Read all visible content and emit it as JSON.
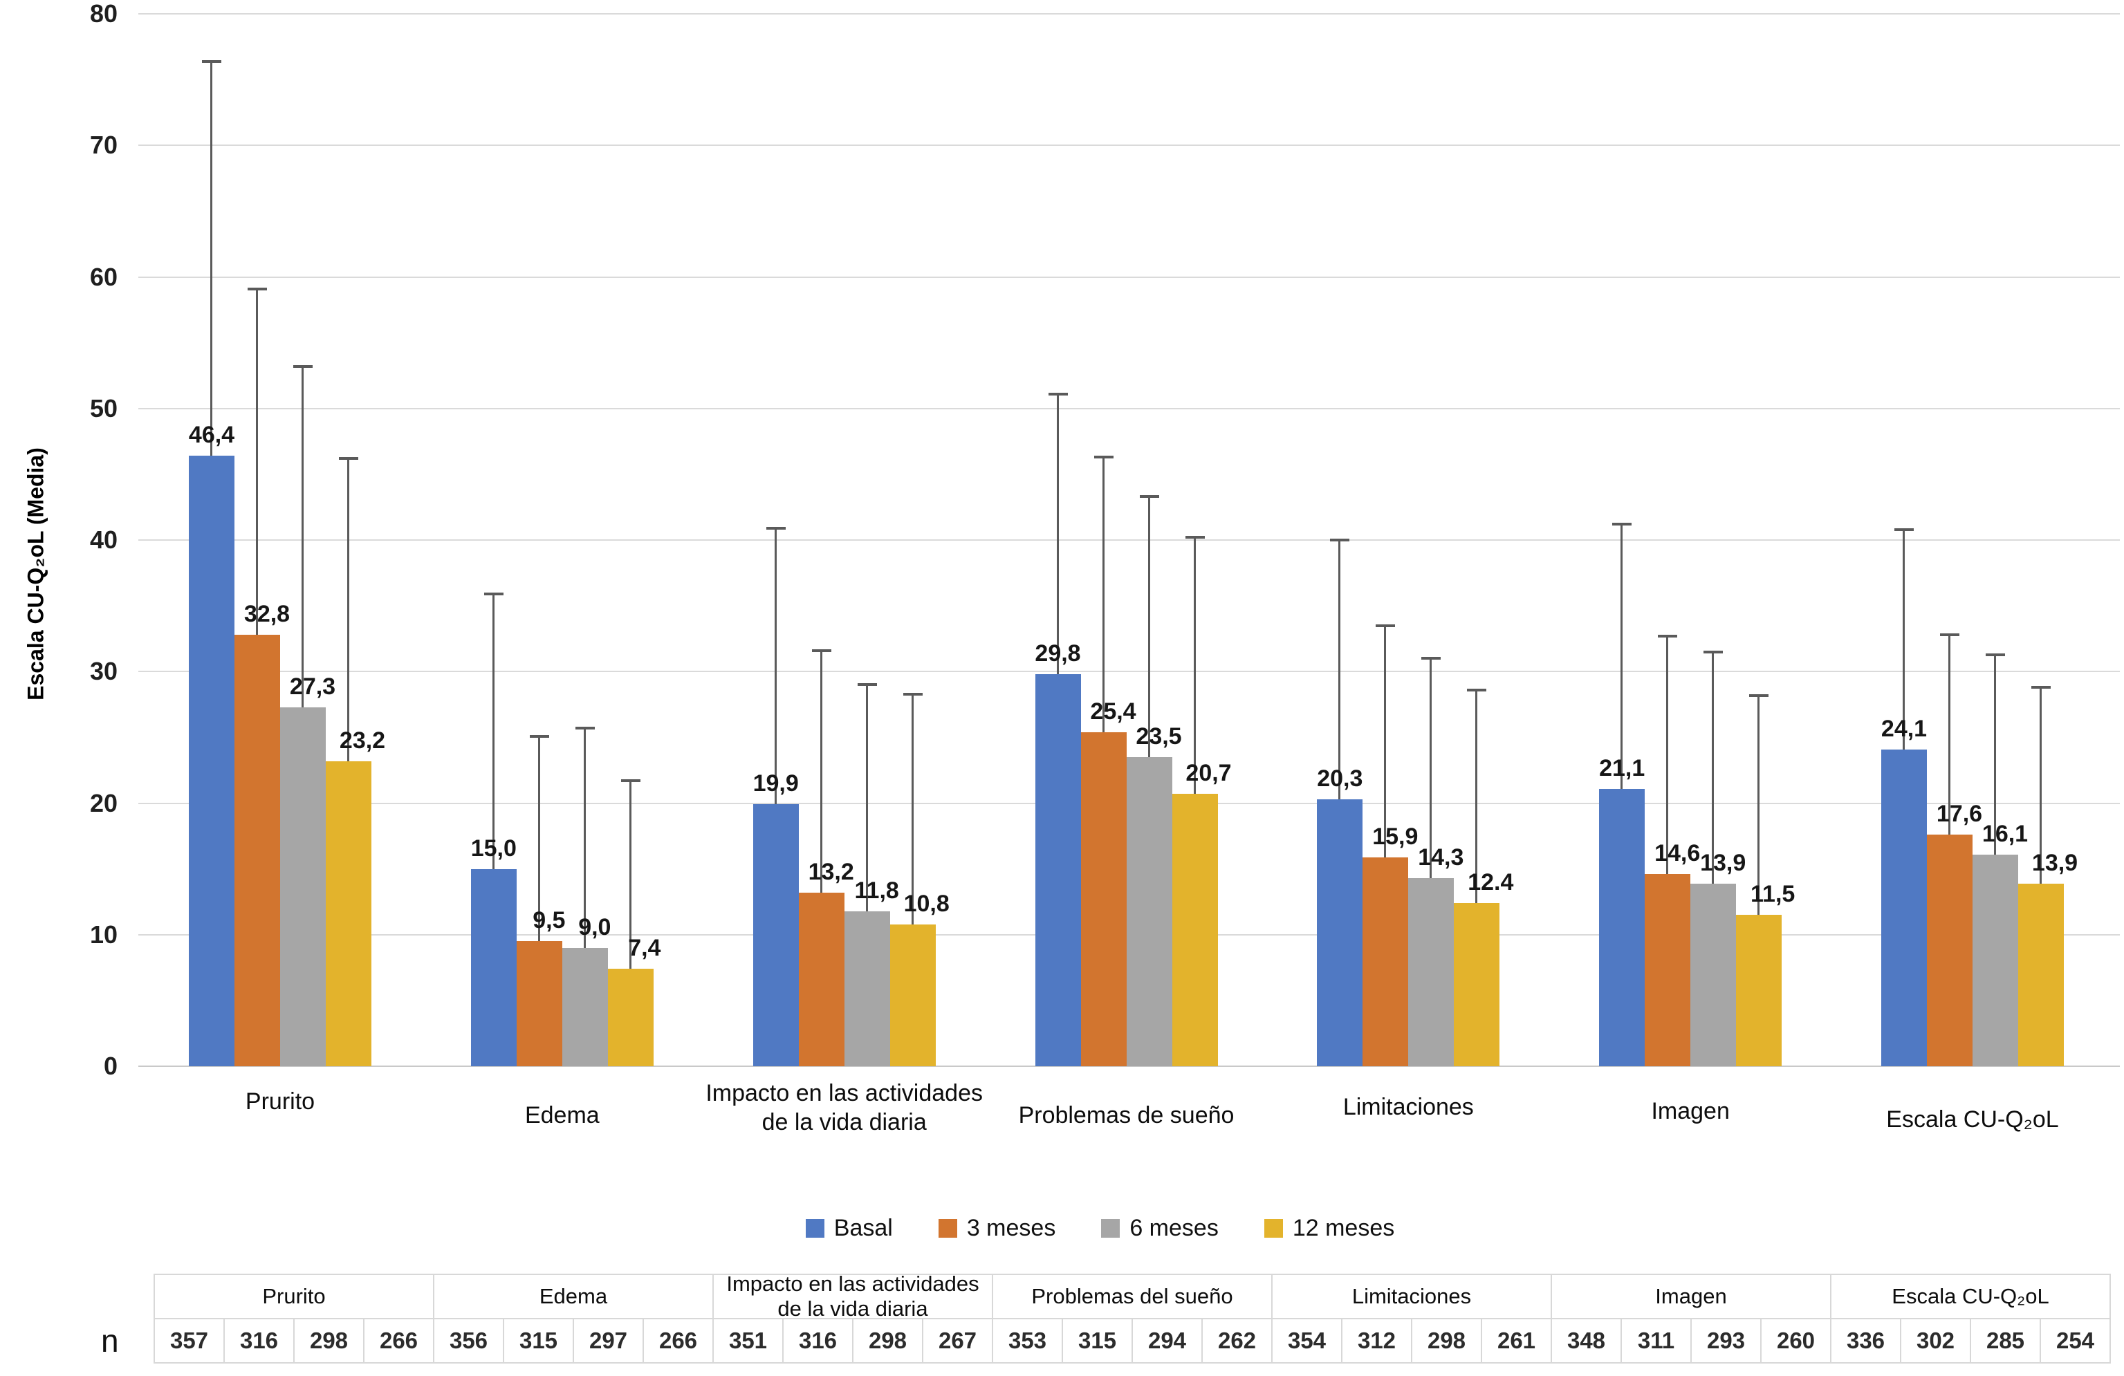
{
  "chart_data": {
    "type": "bar",
    "title": "",
    "ylabel": "Escala CU-Q₂oL (Media)",
    "xlabel": "",
    "ylim": [
      0,
      80
    ],
    "yticks": [
      0,
      10,
      20,
      30,
      40,
      50,
      60,
      70,
      80
    ],
    "grid": "horizontal",
    "legend_position": "bottom",
    "error_bars": "upper-only",
    "categories": [
      "Prurito",
      "Edema",
      "Impacto en las actividades\nde la vida diaria",
      "Problemas de sueño",
      "Limitaciones",
      "Imagen",
      "Escala CU-Q₂oL"
    ],
    "series": [
      {
        "name": "Basal",
        "color": "#5079C3",
        "values": [
          46.4,
          15.0,
          19.9,
          29.8,
          20.3,
          21.1,
          24.1
        ],
        "value_labels": [
          "46,4",
          "15,0",
          "19,9",
          "29,8",
          "20,3",
          "21,1",
          "24,1"
        ],
        "err_top": [
          76.5,
          36.0,
          41.0,
          51.2,
          40.1,
          41.3,
          40.9
        ]
      },
      {
        "name": "3 meses",
        "color": "#D2752F",
        "values": [
          32.8,
          9.5,
          13.2,
          25.4,
          15.9,
          14.6,
          17.6
        ],
        "value_labels": [
          "32,8",
          "9,5",
          "13,2",
          "25,4",
          "15,9",
          "14,6",
          "17,6"
        ],
        "err_top": [
          59.2,
          25.2,
          31.7,
          46.4,
          33.6,
          32.8,
          32.9
        ]
      },
      {
        "name": "6 meses",
        "color": "#A6A6A6",
        "values": [
          27.3,
          9.0,
          11.8,
          23.5,
          14.3,
          13.9,
          16.1
        ],
        "value_labels": [
          "27,3",
          "9,0",
          "11,8",
          "23,5",
          "14,3",
          "13,9",
          "16,1"
        ],
        "err_top": [
          53.3,
          25.8,
          29.1,
          43.4,
          31.1,
          31.6,
          31.4
        ]
      },
      {
        "name": "12 meses",
        "color": "#E3B32C",
        "values": [
          23.2,
          7.4,
          10.8,
          20.7,
          12.4,
          11.5,
          13.9
        ],
        "value_labels": [
          "23,2",
          "7,4",
          "10,8",
          "20,7",
          "12.4",
          "11,5",
          "13,9"
        ],
        "err_top": [
          46.3,
          21.8,
          28.4,
          40.3,
          28.7,
          28.3,
          28.9
        ]
      }
    ]
  },
  "n_table": {
    "row_label": "n",
    "groups": [
      {
        "label": "Prurito",
        "values": [
          357,
          316,
          298,
          266
        ]
      },
      {
        "label": "Edema",
        "values": [
          356,
          315,
          297,
          266
        ]
      },
      {
        "label": "Impacto en las actividades\nde la vida diaria",
        "values": [
          351,
          316,
          298,
          267
        ]
      },
      {
        "label": "Problemas del sueño",
        "values": [
          353,
          315,
          294,
          262
        ]
      },
      {
        "label": "Limitaciones",
        "values": [
          354,
          312,
          298,
          261
        ]
      },
      {
        "label": "Imagen",
        "values": [
          348,
          311,
          293,
          260
        ]
      },
      {
        "label": "Escala CU-Q₂oL",
        "values": [
          336,
          302,
          285,
          254
        ]
      }
    ]
  }
}
